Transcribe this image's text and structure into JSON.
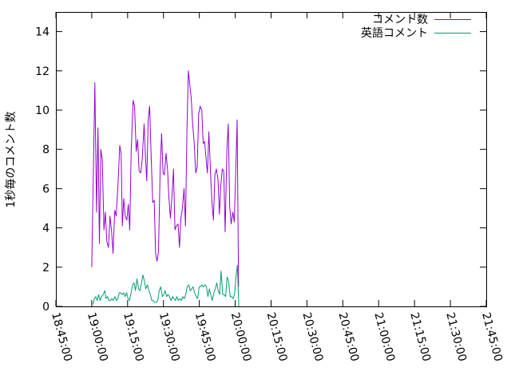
{
  "chart_data": {
    "type": "line",
    "title": "",
    "xlabel": "",
    "ylabel": "1秒毎のコメント数",
    "ylim": [
      0,
      15
    ],
    "yticks": [
      "0",
      "2",
      "4",
      "6",
      "8",
      "10",
      "12",
      "14"
    ],
    "xlim_minutes": [
      0,
      60
    ],
    "xticks": [
      "18:45:00",
      "19:00:00",
      "19:15:00",
      "19:30:00",
      "19:45:00",
      "20:00:00",
      "20:15:00",
      "20:30:00",
      "20:45:00",
      "21:00:00",
      "21:15:00",
      "21:30:00",
      "21:45:00"
    ],
    "legend_position": "top-right",
    "series": [
      {
        "name": "コメント数",
        "color": "#9400d3",
        "points": [
          [
            0.0,
            2.0
          ],
          [
            1.3,
            11.4
          ],
          [
            2.0,
            4.8
          ],
          [
            2.6,
            9.1
          ],
          [
            3.2,
            3.2
          ],
          [
            3.8,
            8.0
          ],
          [
            4.4,
            7.5
          ],
          [
            5.1,
            3.9
          ],
          [
            5.7,
            4.8
          ],
          [
            6.3,
            3.3
          ],
          [
            7.0,
            3.0
          ],
          [
            7.6,
            4.6
          ],
          [
            8.3,
            3.8
          ],
          [
            8.9,
            2.7
          ],
          [
            9.6,
            4.9
          ],
          [
            10.2,
            4.6
          ],
          [
            11.0,
            6.3
          ],
          [
            11.7,
            8.2
          ],
          [
            12.3,
            7.8
          ],
          [
            12.8,
            4.1
          ],
          [
            13.4,
            5.5
          ],
          [
            14.0,
            4.6
          ],
          [
            14.7,
            4.4
          ],
          [
            15.3,
            5.2
          ],
          [
            15.9,
            3.9
          ],
          [
            16.5,
            7.9
          ],
          [
            17.3,
            10.5
          ],
          [
            17.9,
            10.2
          ],
          [
            18.6,
            7.9
          ],
          [
            19.2,
            8.5
          ],
          [
            19.8,
            6.9
          ],
          [
            20.5,
            6.8
          ],
          [
            21.1,
            7.5
          ],
          [
            21.9,
            9.3
          ],
          [
            22.5,
            7.5
          ],
          [
            23.0,
            6.4
          ],
          [
            23.6,
            9.5
          ],
          [
            24.2,
            10.2
          ],
          [
            24.8,
            7.8
          ],
          [
            25.5,
            5.3
          ],
          [
            26.1,
            5.4
          ],
          [
            26.7,
            2.7
          ],
          [
            27.3,
            2.3
          ],
          [
            27.9,
            2.8
          ],
          [
            28.6,
            7.0
          ],
          [
            29.2,
            8.8
          ],
          [
            29.8,
            6.8
          ],
          [
            30.4,
            6.7
          ],
          [
            31.1,
            7.8
          ],
          [
            31.7,
            7.0
          ],
          [
            32.3,
            5.5
          ],
          [
            32.9,
            4.5
          ],
          [
            33.6,
            5.7
          ],
          [
            34.2,
            7.0
          ],
          [
            34.8,
            3.9
          ],
          [
            35.4,
            4.1
          ],
          [
            36.1,
            4.2
          ],
          [
            36.7,
            3.0
          ],
          [
            37.3,
            4.5
          ],
          [
            37.9,
            5.0
          ],
          [
            38.6,
            6.0
          ],
          [
            39.2,
            4.1
          ],
          [
            39.8,
            8.9
          ],
          [
            40.4,
            12.0
          ],
          [
            41.0,
            11.3
          ],
          [
            41.6,
            10.6
          ],
          [
            42.2,
            9.3
          ],
          [
            42.8,
            8.4
          ],
          [
            43.5,
            6.8
          ],
          [
            44.1,
            7.1
          ],
          [
            44.7,
            9.8
          ],
          [
            45.3,
            10.2
          ],
          [
            46.0,
            10.0
          ],
          [
            46.6,
            8.3
          ],
          [
            47.2,
            8.4
          ],
          [
            47.8,
            7.5
          ],
          [
            48.4,
            6.8
          ],
          [
            49.0,
            8.9
          ],
          [
            49.7,
            6.8
          ],
          [
            50.3,
            5.3
          ],
          [
            50.9,
            4.4
          ],
          [
            51.5,
            6.7
          ],
          [
            52.1,
            7.0
          ],
          [
            52.8,
            6.5
          ],
          [
            53.4,
            4.7
          ],
          [
            54.0,
            6.2
          ],
          [
            54.6,
            7.0
          ],
          [
            55.2,
            6.9
          ],
          [
            55.8,
            3.8
          ],
          [
            56.5,
            7.9
          ],
          [
            57.1,
            9.3
          ],
          [
            57.7,
            5.1
          ],
          [
            58.3,
            4.2
          ],
          [
            59.0,
            4.8
          ],
          [
            59.6,
            4.3
          ],
          [
            60.2,
            6.8
          ],
          [
            60.8,
            9.5
          ],
          [
            61.4,
            1.0
          ]
        ]
      },
      {
        "name": "英語コメント",
        "color": "#009e73",
        "points": [
          [
            0.5,
            0.1
          ],
          [
            1.1,
            0.4
          ],
          [
            1.7,
            0.5
          ],
          [
            2.3,
            0.3
          ],
          [
            2.9,
            0.6
          ],
          [
            3.5,
            0.3
          ],
          [
            4.1,
            0.5
          ],
          [
            4.8,
            0.6
          ],
          [
            5.4,
            0.8
          ],
          [
            6.0,
            0.4
          ],
          [
            6.6,
            0.5
          ],
          [
            7.2,
            0.3
          ],
          [
            7.8,
            0.3
          ],
          [
            8.4,
            0.4
          ],
          [
            9.0,
            0.3
          ],
          [
            9.7,
            0.5
          ],
          [
            10.3,
            0.3
          ],
          [
            10.9,
            0.4
          ],
          [
            11.5,
            0.7
          ],
          [
            12.1,
            0.7
          ],
          [
            12.8,
            0.6
          ],
          [
            13.4,
            0.7
          ],
          [
            14.0,
            0.5
          ],
          [
            14.6,
            0.7
          ],
          [
            15.2,
            0.4
          ],
          [
            15.8,
            0.3
          ],
          [
            16.5,
            0.7
          ],
          [
            17.1,
            1.1
          ],
          [
            17.7,
            1.2
          ],
          [
            18.3,
            0.8
          ],
          [
            18.9,
            1.4
          ],
          [
            19.6,
            0.9
          ],
          [
            20.2,
            0.8
          ],
          [
            20.8,
            1.2
          ],
          [
            21.4,
            1.6
          ],
          [
            22.0,
            1.3
          ],
          [
            22.6,
            0.9
          ],
          [
            23.3,
            1.1
          ],
          [
            23.9,
            0.8
          ],
          [
            24.5,
            0.6
          ],
          [
            25.1,
            0.3
          ],
          [
            25.7,
            0.3
          ],
          [
            26.4,
            0.2
          ],
          [
            27.0,
            0.2
          ],
          [
            27.6,
            0.3
          ],
          [
            28.2,
            0.8
          ],
          [
            28.8,
            1.0
          ],
          [
            29.5,
            0.5
          ],
          [
            30.1,
            0.6
          ],
          [
            30.7,
            0.8
          ],
          [
            31.3,
            0.5
          ],
          [
            31.9,
            0.6
          ],
          [
            32.5,
            0.5
          ],
          [
            33.2,
            0.3
          ],
          [
            33.8,
            0.5
          ],
          [
            34.4,
            0.4
          ],
          [
            35.0,
            0.3
          ],
          [
            35.6,
            0.5
          ],
          [
            36.2,
            0.3
          ],
          [
            36.9,
            0.4
          ],
          [
            37.5,
            0.3
          ],
          [
            38.1,
            0.5
          ],
          [
            38.7,
            0.4
          ],
          [
            39.3,
            0.6
          ],
          [
            39.9,
            1.0
          ],
          [
            40.6,
            1.1
          ],
          [
            41.2,
            0.8
          ],
          [
            41.8,
            0.9
          ],
          [
            42.4,
            1.0
          ],
          [
            43.0,
            0.7
          ],
          [
            43.7,
            0.5
          ],
          [
            44.3,
            0.4
          ],
          [
            44.9,
            1.0
          ],
          [
            45.5,
            1.0
          ],
          [
            46.1,
            1.1
          ],
          [
            46.7,
            1.0
          ],
          [
            47.4,
            1.1
          ],
          [
            48.0,
            1.0
          ],
          [
            48.6,
            0.5
          ],
          [
            49.2,
            0.9
          ],
          [
            49.8,
            0.6
          ],
          [
            50.4,
            0.3
          ],
          [
            51.1,
            0.7
          ],
          [
            51.7,
            0.9
          ],
          [
            52.3,
            1.2
          ],
          [
            52.9,
            0.8
          ],
          [
            53.5,
            0.6
          ],
          [
            54.1,
            1.8
          ],
          [
            54.8,
            0.6
          ],
          [
            55.4,
            0.6
          ],
          [
            56.0,
            0.5
          ],
          [
            56.6,
            1.5
          ],
          [
            57.2,
            1.3
          ],
          [
            57.9,
            0.5
          ],
          [
            58.5,
            0.5
          ],
          [
            59.1,
            0.4
          ],
          [
            59.7,
            0.6
          ],
          [
            60.3,
            1.5
          ],
          [
            60.9,
            2.1
          ],
          [
            61.5,
            0.0
          ]
        ]
      }
    ]
  }
}
